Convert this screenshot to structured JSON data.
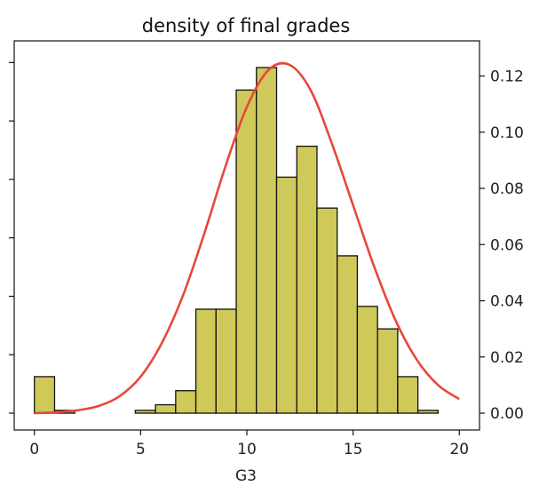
{
  "chart_data": {
    "type": "bar",
    "title": "density of final grades",
    "xlabel": "G3",
    "ylabel": "",
    "xlim": [
      -0.95,
      20.95
    ],
    "ylim": [
      -0.006,
      0.1325
    ],
    "xticks": [
      0,
      5,
      10,
      15,
      20
    ],
    "yticks_right": [
      "0.00",
      "0.02",
      "0.04",
      "0.06",
      "0.08",
      "0.10",
      "0.12"
    ],
    "grid": false,
    "bar_color": "#cfc95a",
    "bar_edge_color": "#111111",
    "curve_color": "#e8473a",
    "histogram": {
      "bin_width": 0.95,
      "bins": [
        {
          "x0": 0.0,
          "density": 0.013
        },
        {
          "x0": 0.95,
          "density": 0.001
        },
        {
          "x0": 1.9,
          "density": 0.0
        },
        {
          "x0": 2.85,
          "density": 0.0
        },
        {
          "x0": 3.8,
          "density": 0.0
        },
        {
          "x0": 4.75,
          "density": 0.001
        },
        {
          "x0": 5.7,
          "density": 0.003
        },
        {
          "x0": 6.65,
          "density": 0.008
        },
        {
          "x0": 7.6,
          "density": 0.037
        },
        {
          "x0": 8.55,
          "density": 0.037
        },
        {
          "x0": 9.5,
          "density": 0.115
        },
        {
          "x0": 10.45,
          "density": 0.123
        },
        {
          "x0": 11.4,
          "density": 0.084
        },
        {
          "x0": 12.35,
          "density": 0.095
        },
        {
          "x0": 13.3,
          "density": 0.073
        },
        {
          "x0": 14.25,
          "density": 0.056
        },
        {
          "x0": 15.2,
          "density": 0.038
        },
        {
          "x0": 16.15,
          "density": 0.03
        },
        {
          "x0": 17.1,
          "density": 0.013
        },
        {
          "x0": 18.05,
          "density": 0.001
        }
      ]
    },
    "curve": {
      "x": [
        0,
        1,
        2,
        3,
        4,
        5,
        6,
        7,
        8,
        9,
        10,
        11,
        12,
        13,
        14,
        15,
        16,
        17,
        18,
        19,
        20
      ],
      "y": [
        0.0,
        0.0003,
        0.001,
        0.0025,
        0.006,
        0.013,
        0.025,
        0.042,
        0.064,
        0.088,
        0.109,
        0.122,
        0.124,
        0.115,
        0.096,
        0.074,
        0.052,
        0.033,
        0.019,
        0.01,
        0.005
      ]
    }
  }
}
